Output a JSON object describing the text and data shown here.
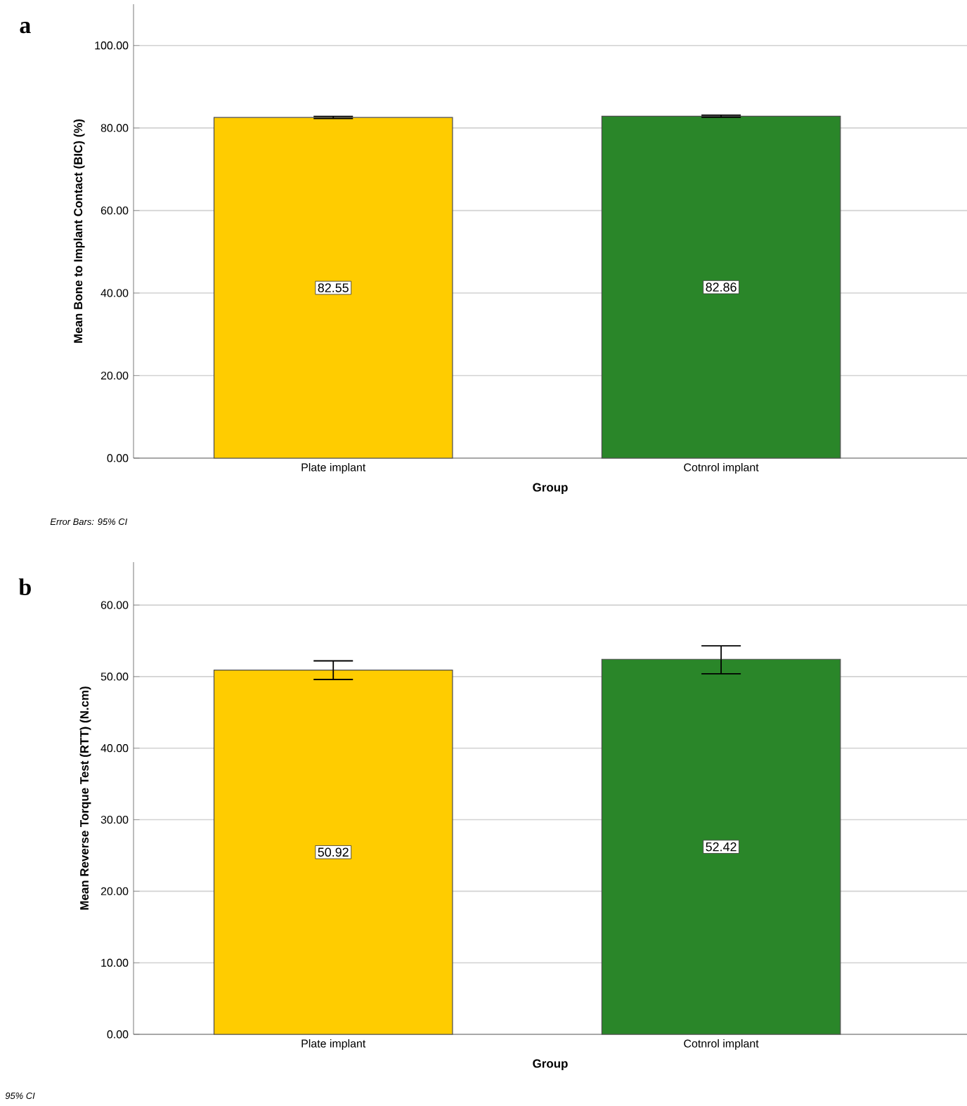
{
  "chart_data": [
    {
      "type": "bar",
      "title": "a",
      "xlabel": "Group",
      "ylabel": "Mean Bone to Implant Contact (BIC) (%)",
      "categories": [
        "Plate implant",
        "Cotnrol implant"
      ],
      "values": [
        82.55,
        82.86
      ],
      "colors": [
        "#ffcc00",
        "#2a8629"
      ],
      "errors": [
        [
          82.3,
          82.8
        ],
        [
          82.6,
          83.1
        ]
      ],
      "value_labels": [
        "82.55",
        "82.86"
      ],
      "ylim": [
        0,
        110
      ],
      "yticks": [
        {
          "value": 0,
          "label": "0.00"
        },
        {
          "value": 20,
          "label": "20.00"
        },
        {
          "value": 40,
          "label": "40.00"
        },
        {
          "value": 60,
          "label": "60.00"
        },
        {
          "value": 80,
          "label": "80.00"
        },
        {
          "value": 100,
          "label": "100.00"
        }
      ],
      "grid": "y",
      "annotations": [
        "Error Bars: 95% CI"
      ]
    },
    {
      "type": "bar",
      "title": "b",
      "xlabel": "Group",
      "ylabel": "Mean Reverse Torque Test (RTT) (N.cm)",
      "categories": [
        "Plate implant",
        "Cotnrol implant"
      ],
      "values": [
        50.92,
        52.42
      ],
      "colors": [
        "#ffcc00",
        "#2a8629"
      ],
      "errors": [
        [
          49.6,
          52.2
        ],
        [
          50.4,
          54.3
        ]
      ],
      "value_labels": [
        "50.92",
        "52.42"
      ],
      "ylim": [
        0,
        66
      ],
      "yticks": [
        {
          "value": 0,
          "label": "0.00"
        },
        {
          "value": 10,
          "label": "10.00"
        },
        {
          "value": 20,
          "label": "20.00"
        },
        {
          "value": 30,
          "label": "30.00"
        },
        {
          "value": 40,
          "label": "40.00"
        },
        {
          "value": 50,
          "label": "50.00"
        },
        {
          "value": 60,
          "label": "60.00"
        }
      ],
      "grid": "y",
      "annotations": [
        "95% CI"
      ]
    }
  ]
}
